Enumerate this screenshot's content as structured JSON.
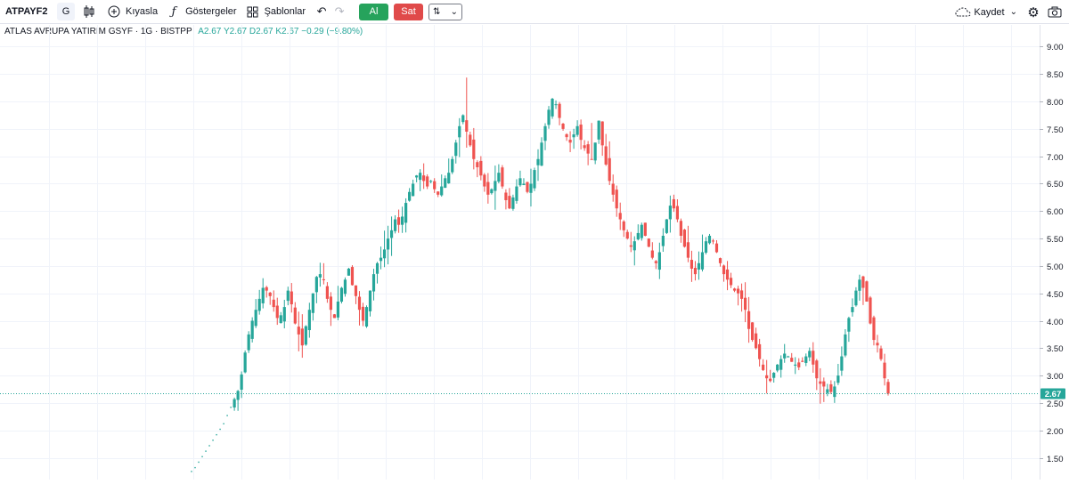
{
  "toolbar": {
    "symbol": "ATPAYF2",
    "interval": "G",
    "compare_label": "Kıyasla",
    "indicators_label": "Göstergeler",
    "templates_label": "Şablonlar",
    "buy_label": "Al",
    "sell_label": "Sat",
    "order_type": "⇅",
    "save_label": "Kaydet"
  },
  "legend": {
    "name": "ATLAS AVRUPA YATIRIM GSYF",
    "interval": "1G",
    "exchange": "BISTPP",
    "ohlc": "A2.67 Y2.67 D2.67 K2.67 −0.29 (−9.80%)"
  },
  "colors": {
    "up": "#26a69a",
    "down": "#ef5350",
    "last_price_bg": "#26a69a"
  },
  "chart_data": {
    "type": "candlestick",
    "ylim": [
      1.2,
      9.3
    ],
    "y_ticks": [
      "9.00",
      "8.50",
      "8.00",
      "7.50",
      "7.00",
      "6.50",
      "6.00",
      "5.50",
      "5.00",
      "4.50",
      "4.00",
      "3.50",
      "3.00",
      "2.50",
      "2.00",
      "1.50"
    ],
    "last_price": 2.67,
    "last_price_label": "2.67",
    "grid": true,
    "points": [
      1.25,
      1.32,
      1.42,
      1.52,
      1.62,
      1.72,
      1.82,
      1.92,
      2.02,
      2.12,
      2.27,
      2.42,
      2.57,
      2.72,
      3.02,
      3.42,
      3.75,
      4.0,
      4.2,
      4.4,
      4.6,
      4.55,
      4.45,
      4.25,
      4.05,
      4.1,
      4.25,
      4.55,
      4.3,
      3.95,
      3.75,
      3.55,
      3.9,
      4.2,
      4.5,
      4.8,
      4.85,
      4.75,
      4.4,
      4.2,
      4.05,
      4.35,
      4.6,
      4.75,
      4.95,
      4.65,
      4.45,
      4.2,
      4.0,
      4.25,
      4.55,
      4.85,
      5.05,
      5.15,
      5.3,
      5.5,
      5.65,
      5.85,
      5.75,
      5.9,
      6.15,
      6.35,
      6.5,
      6.65,
      6.7,
      6.55,
      6.45,
      6.55,
      6.4,
      6.3,
      6.45,
      6.6,
      6.7,
      6.95,
      7.25,
      7.55,
      7.75,
      7.45,
      7.2,
      6.95,
      6.8,
      6.65,
      6.45,
      6.3,
      6.4,
      6.55,
      6.7,
      6.45,
      6.2,
      6.05,
      6.25,
      6.45,
      6.6,
      6.5,
      6.35,
      6.5,
      6.75,
      6.95,
      7.25,
      7.55,
      7.85,
      8.05,
      7.95,
      7.7,
      7.5,
      7.35,
      7.25,
      7.4,
      7.55,
      7.3,
      7.15,
      7.05,
      6.95,
      7.25,
      7.65,
      7.2,
      6.85,
      6.55,
      6.3,
      6.05,
      5.85,
      5.65,
      5.5,
      5.35,
      5.45,
      5.6,
      5.75,
      5.55,
      5.35,
      5.15,
      5.05,
      5.25,
      5.55,
      5.85,
      6.1,
      6.05,
      5.85,
      5.55,
      5.35,
      5.15,
      4.95,
      4.85,
      5.05,
      5.25,
      5.45,
      5.55,
      5.45,
      5.25,
      5.05,
      4.85,
      4.75,
      4.65,
      4.55,
      4.5,
      4.4,
      4.2,
      3.85,
      3.65,
      3.5,
      3.3,
      3.1,
      2.95,
      2.9,
      3.05,
      3.2,
      3.3,
      3.4,
      3.35,
      3.25,
      3.2,
      3.15,
      3.25,
      3.35,
      3.45,
      3.2,
      2.95,
      2.85,
      2.8,
      2.75,
      2.7,
      2.8,
      3.0,
      3.35,
      3.75,
      4.05,
      4.25,
      4.55,
      4.75,
      4.6,
      4.35,
      3.95,
      3.65,
      3.55,
      3.3,
      2.95,
      2.67
    ]
  }
}
